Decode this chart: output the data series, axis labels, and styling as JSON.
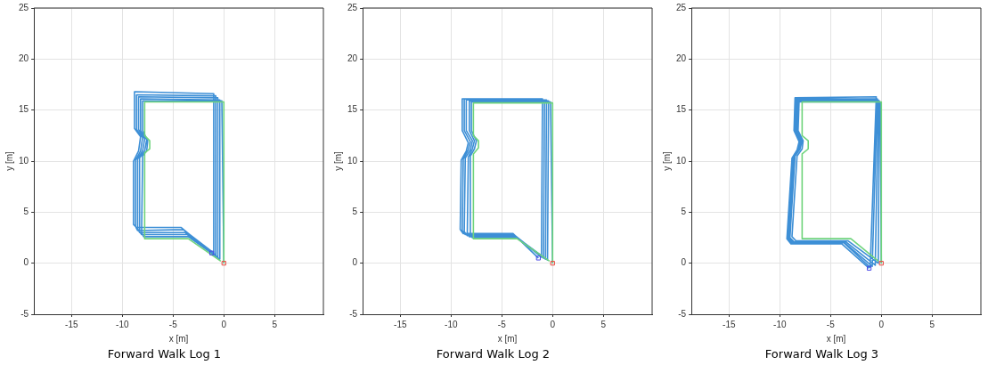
{
  "chart_data": [
    {
      "type": "line",
      "title": "Forward Walk Log 1",
      "xlabel": "x [m]",
      "ylabel": "y [m]",
      "xlim": [
        -18.7,
        9.8
      ],
      "ylim": [
        -5,
        25
      ],
      "xticks": [
        -15,
        -10,
        -5,
        0,
        5
      ],
      "yticks": [
        -5,
        0,
        5,
        10,
        15,
        20,
        25
      ],
      "grid": true,
      "legend": false,
      "marker": "none",
      "series": [
        {
          "type": "line",
          "color": "#3d8fd6",
          "x": [
            0,
            -0.2,
            -8.0,
            -8.0,
            -7.5,
            -7.6,
            -8.0,
            -8.1,
            -7.9,
            -3.5,
            -0.4,
            -0.4,
            -8.2,
            -8.2,
            -7.6,
            -7.8,
            -8.3,
            -8.3,
            -8.1,
            -3.6,
            -0.6,
            -0.6,
            -8.4,
            -8.4,
            -7.8,
            -8.0,
            -8.5,
            -8.5,
            -8.3,
            -3.8,
            -0.8,
            -0.8,
            -8.6,
            -8.6,
            -8.0,
            -8.2,
            -8.7,
            -8.7,
            -8.5,
            -4.0,
            -1.0,
            -1.0,
            -8.8,
            -8.8,
            -8.2,
            -8.4,
            -8.9,
            -8.9,
            -8.6,
            -4.2,
            -1.2
          ],
          "values": [
            0,
            15.9,
            15.9,
            13,
            12,
            11,
            10.5,
            3,
            2.6,
            2.6,
            0.4,
            16.0,
            16.1,
            13,
            12.1,
            11,
            10.3,
            3.1,
            2.8,
            2.8,
            0.6,
            16.2,
            16.3,
            13.1,
            12.2,
            11,
            10.2,
            3.4,
            3.0,
            3.0,
            0.8,
            16.4,
            16.5,
            13.1,
            12.3,
            11,
            10.1,
            3.6,
            3.2,
            3.3,
            1.0,
            16.6,
            16.8,
            13.2,
            12.4,
            11,
            10,
            3.8,
            3.5,
            3.5,
            1.0
          ]
        },
        {
          "type": "line",
          "color": "#6fd47c",
          "x": [
            0,
            0,
            -7.8,
            -7.8,
            -7.3,
            -7.3,
            -7.8,
            -7.8,
            -3.5,
            -0.3
          ],
          "values": [
            0,
            15.8,
            15.8,
            12.5,
            12,
            11.2,
            10.8,
            2.4,
            2.4,
            0.2
          ]
        },
        {
          "type": "scatter",
          "marker": "square",
          "color": "#e84a3f",
          "x": [
            0
          ],
          "values": [
            0
          ]
        },
        {
          "type": "scatter",
          "marker": "square",
          "color": "#4a4ae6",
          "x": [
            -1.2
          ],
          "values": [
            1.0
          ]
        }
      ]
    },
    {
      "type": "line",
      "title": "Forward Walk Log 2",
      "xlabel": "x [m]",
      "ylabel": "y [m]",
      "xlim": [
        -18.7,
        9.8
      ],
      "ylim": [
        -5,
        25
      ],
      "xticks": [
        -15,
        -10,
        -5,
        0,
        5
      ],
      "yticks": [
        -5,
        0,
        5,
        10,
        15,
        20,
        25
      ],
      "grid": true,
      "legend": false,
      "marker": "none",
      "series": [
        {
          "type": "line",
          "color": "#3d8fd6",
          "x": [
            0,
            -0.2,
            -8.0,
            -8.0,
            -7.5,
            -7.7,
            -8.1,
            -8.1,
            -7.9,
            -3.5,
            -0.5,
            -0.4,
            -8.2,
            -8.2,
            -7.7,
            -7.9,
            -8.3,
            -8.4,
            -8.2,
            -3.6,
            -0.7,
            -0.6,
            -8.5,
            -8.5,
            -7.9,
            -8.1,
            -8.6,
            -8.7,
            -8.4,
            -3.7,
            -0.9,
            -0.8,
            -8.7,
            -8.7,
            -8.1,
            -8.3,
            -8.8,
            -8.9,
            -8.6,
            -3.8,
            -1.1,
            -1.0,
            -8.9,
            -8.9,
            -8.3,
            -8.5,
            -9.0,
            -9.1,
            -8.8,
            -3.9,
            -1.4
          ],
          "values": [
            0,
            15.8,
            15.8,
            13,
            12,
            11.2,
            10.5,
            2.8,
            2.5,
            2.5,
            0.3,
            15.9,
            15.9,
            13,
            12,
            11.2,
            10.4,
            3.0,
            2.6,
            2.6,
            0.4,
            16.0,
            16.0,
            13,
            12,
            11.1,
            10.3,
            3.1,
            2.7,
            2.7,
            0.5,
            16.0,
            16.1,
            13,
            11.9,
            11.1,
            10.2,
            3.2,
            2.8,
            2.8,
            0.6,
            16.1,
            16.1,
            13,
            11.8,
            11,
            10.1,
            3.3,
            2.9,
            2.9,
            0.5
          ]
        },
        {
          "type": "line",
          "color": "#6fd47c",
          "x": [
            0,
            0,
            -7.8,
            -7.8,
            -7.3,
            -7.3,
            -7.8,
            -7.8,
            -3.5,
            -0.3
          ],
          "values": [
            0,
            15.7,
            15.7,
            12.5,
            12,
            11.3,
            10.7,
            2.4,
            2.4,
            0.2
          ]
        },
        {
          "type": "scatter",
          "marker": "square",
          "color": "#e84a3f",
          "x": [
            0
          ],
          "values": [
            0
          ]
        },
        {
          "type": "scatter",
          "marker": "square",
          "color": "#4a4ae6",
          "x": [
            -1.4
          ],
          "values": [
            0.5
          ]
        }
      ]
    },
    {
      "type": "line",
      "title": "Forward Walk Log 3",
      "xlabel": "x [m]",
      "ylabel": "y [m]",
      "xlim": [
        -18.7,
        9.8
      ],
      "ylim": [
        -5,
        25
      ],
      "xticks": [
        -15,
        -10,
        -5,
        0,
        5
      ],
      "yticks": [
        -5,
        0,
        5,
        10,
        15,
        20,
        25
      ],
      "grid": true,
      "legend": false,
      "marker": "none",
      "series": [
        {
          "type": "line",
          "color": "#3d8fd6",
          "x": [
            0,
            -0.1,
            -8.1,
            -8.2,
            -7.7,
            -7.8,
            -8.3,
            -8.8,
            -8.4,
            -3.3,
            -0.3,
            -0.2,
            -8.2,
            -8.3,
            -7.8,
            -8.0,
            -8.5,
            -9.0,
            -8.6,
            -3.5,
            -0.6,
            -0.3,
            -8.3,
            -8.4,
            -7.9,
            -8.1,
            -8.6,
            -9.1,
            -8.7,
            -3.6,
            -0.9,
            -0.4,
            -8.4,
            -8.5,
            -8.0,
            -8.2,
            -8.7,
            -9.2,
            -8.8,
            -3.7,
            -1.1,
            -0.5,
            -8.5,
            -8.6,
            -8.1,
            -8.3,
            -8.8,
            -9.3,
            -8.9,
            -3.9,
            -1.2
          ],
          "values": [
            0,
            15.8,
            15.8,
            13,
            12,
            11.2,
            10.5,
            2.6,
            2.2,
            2.2,
            0.0,
            15.9,
            15.9,
            13,
            12,
            11.2,
            10.5,
            2.5,
            2.1,
            2.1,
            -0.2,
            16.0,
            16.0,
            13,
            12,
            11.2,
            10.4,
            2.5,
            2.0,
            2.0,
            -0.3,
            16.1,
            16.1,
            13,
            11.9,
            11.1,
            10.4,
            2.4,
            2.0,
            2.0,
            -0.4,
            16.3,
            16.2,
            13,
            11.9,
            11.1,
            10.3,
            2.4,
            1.9,
            1.9,
            -0.5
          ]
        },
        {
          "type": "line",
          "color": "#6fd47c",
          "x": [
            0,
            0,
            -7.8,
            -7.8,
            -7.2,
            -7.2,
            -7.8,
            -7.8,
            -3.0,
            -0.3
          ],
          "values": [
            0,
            15.8,
            15.8,
            12.5,
            12,
            11.2,
            10.7,
            2.4,
            2.4,
            0.2
          ]
        },
        {
          "type": "scatter",
          "marker": "square",
          "color": "#e84a3f",
          "x": [
            0
          ],
          "values": [
            0
          ]
        },
        {
          "type": "scatter",
          "marker": "square",
          "color": "#4a4ae6",
          "x": [
            -1.2
          ],
          "values": [
            -0.5
          ]
        }
      ]
    }
  ]
}
